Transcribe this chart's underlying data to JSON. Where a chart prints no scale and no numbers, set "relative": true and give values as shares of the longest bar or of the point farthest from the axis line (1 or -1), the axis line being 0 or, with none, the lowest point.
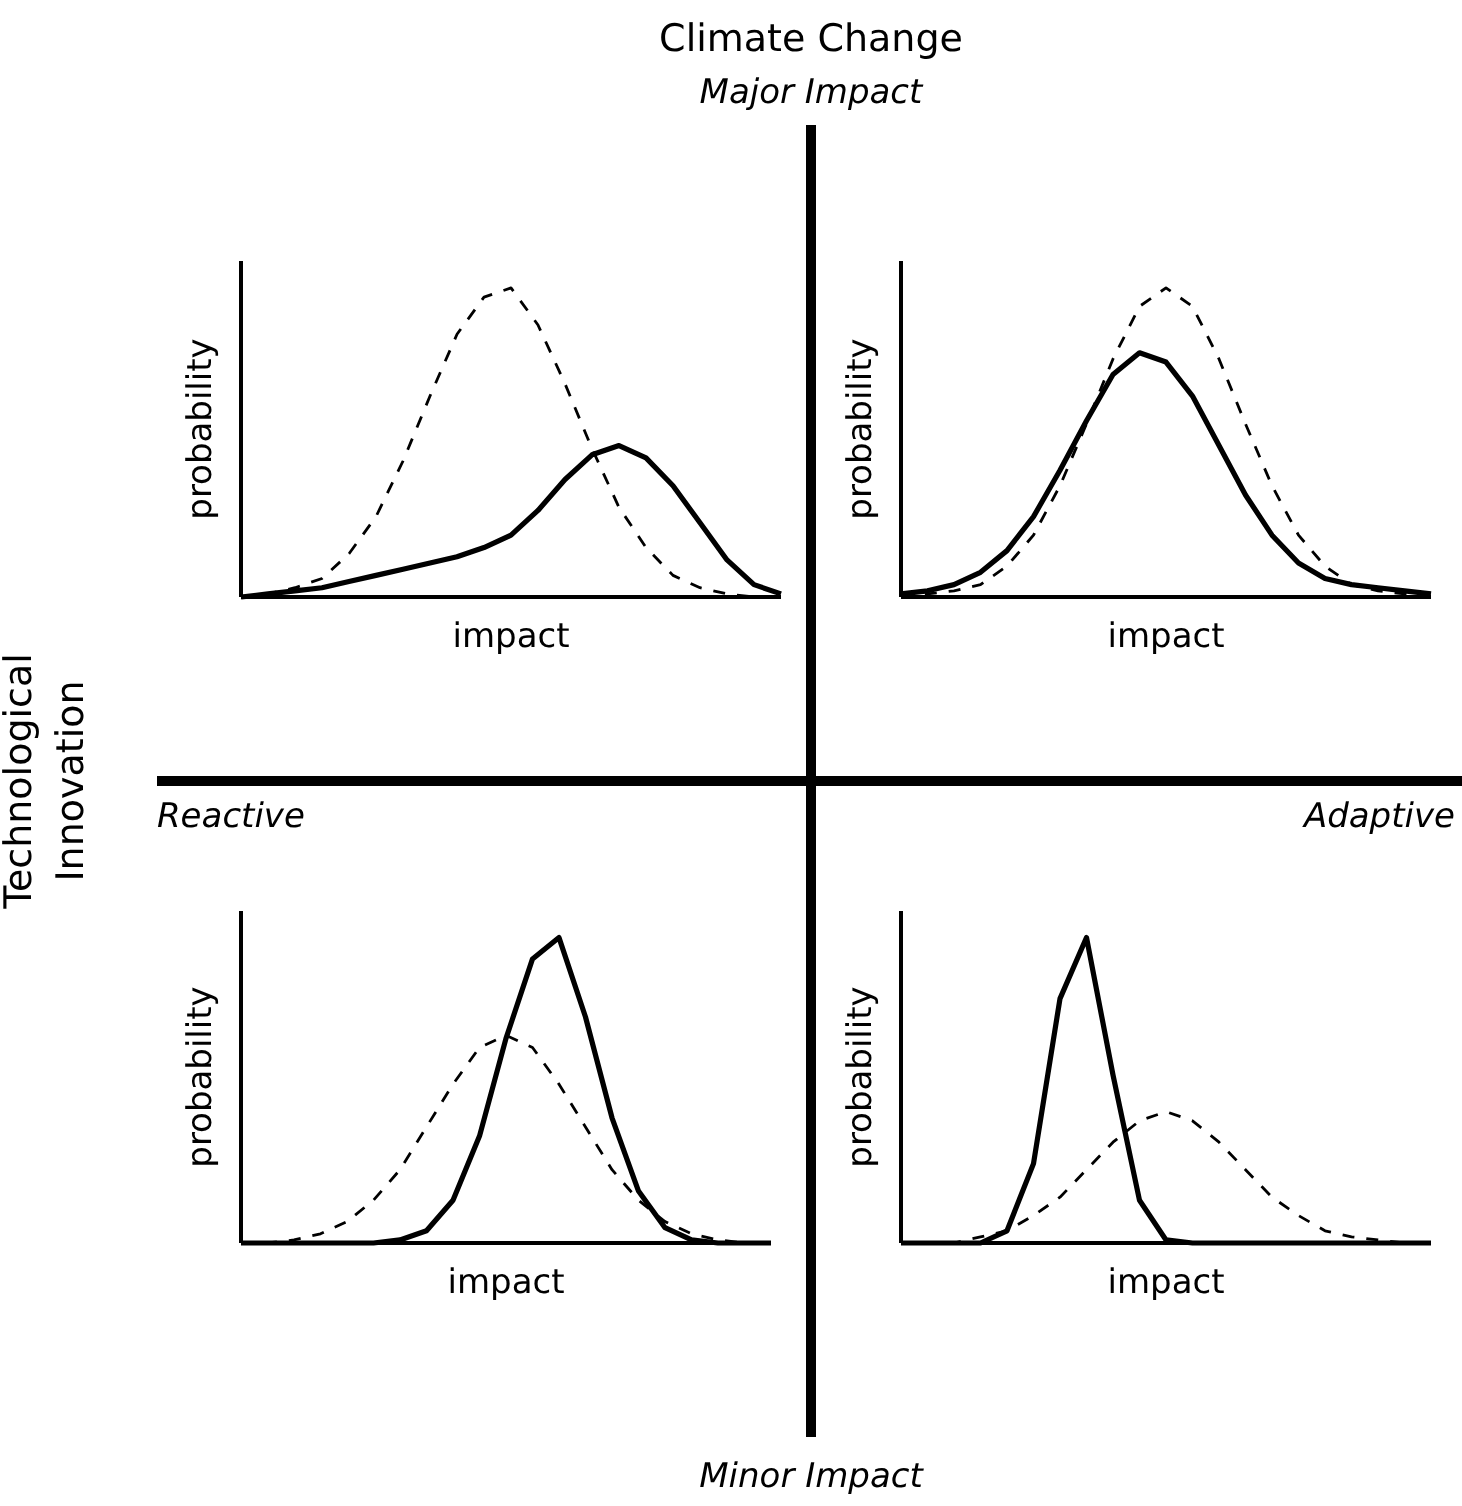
{
  "chart_data": [
    {
      "type": "line",
      "relative": true,
      "xlabel": "impact",
      "ylabel": "probability",
      "categories": [
        null,
        null,
        null,
        null,
        null,
        null,
        null,
        null,
        null,
        null,
        null,
        null,
        null,
        null,
        null,
        null,
        null,
        null,
        null,
        null,
        null
      ],
      "series": [
        {
          "color": "#000000",
          "line_style": "dashed",
          "values": [
            0,
            0.01,
            0.03,
            0.06,
            0.14,
            0.26,
            0.44,
            0.65,
            0.85,
            0.97,
            1.0,
            0.88,
            0.69,
            0.48,
            0.29,
            0.16,
            0.07,
            0.03,
            0.01,
            0,
            0
          ]
        },
        {
          "color": "#000000",
          "line_style": "solid",
          "values": [
            0,
            0.01,
            0.02,
            0.03,
            0.05,
            0.07,
            0.09,
            0.11,
            0.13,
            0.16,
            0.2,
            0.28,
            0.38,
            0.46,
            0.49,
            0.45,
            0.36,
            0.24,
            0.12,
            0.04,
            0.01
          ]
        }
      ]
    },
    {
      "type": "line",
      "relative": true,
      "xlabel": "impact",
      "ylabel": "probability",
      "categories": [
        null,
        null,
        null,
        null,
        null,
        null,
        null,
        null,
        null,
        null,
        null,
        null,
        null,
        null,
        null,
        null,
        null,
        null,
        null,
        null,
        null
      ],
      "series": [
        {
          "color": "#000000",
          "line_style": "dashed",
          "values": [
            0,
            0.01,
            0.02,
            0.04,
            0.1,
            0.2,
            0.36,
            0.56,
            0.77,
            0.94,
            1.0,
            0.94,
            0.77,
            0.56,
            0.36,
            0.2,
            0.1,
            0.04,
            0.02,
            0.01,
            0
          ]
        },
        {
          "color": "#000000",
          "line_style": "solid",
          "values": [
            0.01,
            0.02,
            0.04,
            0.08,
            0.15,
            0.26,
            0.41,
            0.57,
            0.72,
            0.79,
            0.76,
            0.65,
            0.49,
            0.33,
            0.2,
            0.11,
            0.06,
            0.04,
            0.03,
            0.02,
            0.01
          ]
        }
      ]
    },
    {
      "type": "line",
      "relative": true,
      "xlabel": "impact",
      "ylabel": "probability",
      "categories": [
        null,
        null,
        null,
        null,
        null,
        null,
        null,
        null,
        null,
        null,
        null,
        null,
        null,
        null,
        null,
        null,
        null,
        null,
        null,
        null,
        null
      ],
      "series": [
        {
          "color": "#000000",
          "line_style": "dashed",
          "values": [
            0,
            0,
            0.01,
            0.03,
            0.07,
            0.14,
            0.24,
            0.38,
            0.52,
            0.64,
            0.68,
            0.64,
            0.52,
            0.38,
            0.24,
            0.14,
            0.07,
            0.03,
            0.01,
            0,
            0
          ]
        },
        {
          "color": "#000000",
          "line_style": "solid",
          "values": [
            0,
            0,
            0,
            0,
            0,
            0,
            0.01,
            0.04,
            0.14,
            0.35,
            0.67,
            0.93,
            1.0,
            0.74,
            0.41,
            0.17,
            0.05,
            0.01,
            0,
            0,
            0
          ]
        }
      ]
    },
    {
      "type": "line",
      "relative": true,
      "xlabel": "impact",
      "ylabel": "probability",
      "categories": [
        null,
        null,
        null,
        null,
        null,
        null,
        null,
        null,
        null,
        null,
        null,
        null,
        null,
        null,
        null,
        null,
        null,
        null,
        null,
        null,
        null
      ],
      "series": [
        {
          "color": "#000000",
          "line_style": "dashed",
          "values": [
            0,
            0,
            0,
            0.02,
            0.04,
            0.09,
            0.15,
            0.24,
            0.33,
            0.4,
            0.43,
            0.4,
            0.33,
            0.24,
            0.15,
            0.09,
            0.04,
            0.02,
            0.01,
            0,
            0
          ]
        },
        {
          "color": "#000000",
          "line_style": "solid",
          "values": [
            0,
            0,
            0,
            0,
            0.04,
            0.26,
            0.8,
            1.0,
            0.55,
            0.14,
            0.01,
            0,
            0,
            0,
            0,
            0,
            0,
            0,
            0,
            0,
            0
          ]
        }
      ]
    },
    {
      "type": "other",
      "title": "Climate Change",
      "ylabel": "Technological Innovation",
      "annotations": [
        "Major Impact",
        "Minor Impact",
        "Reactive",
        "Adaptive"
      ]
    }
  ]
}
